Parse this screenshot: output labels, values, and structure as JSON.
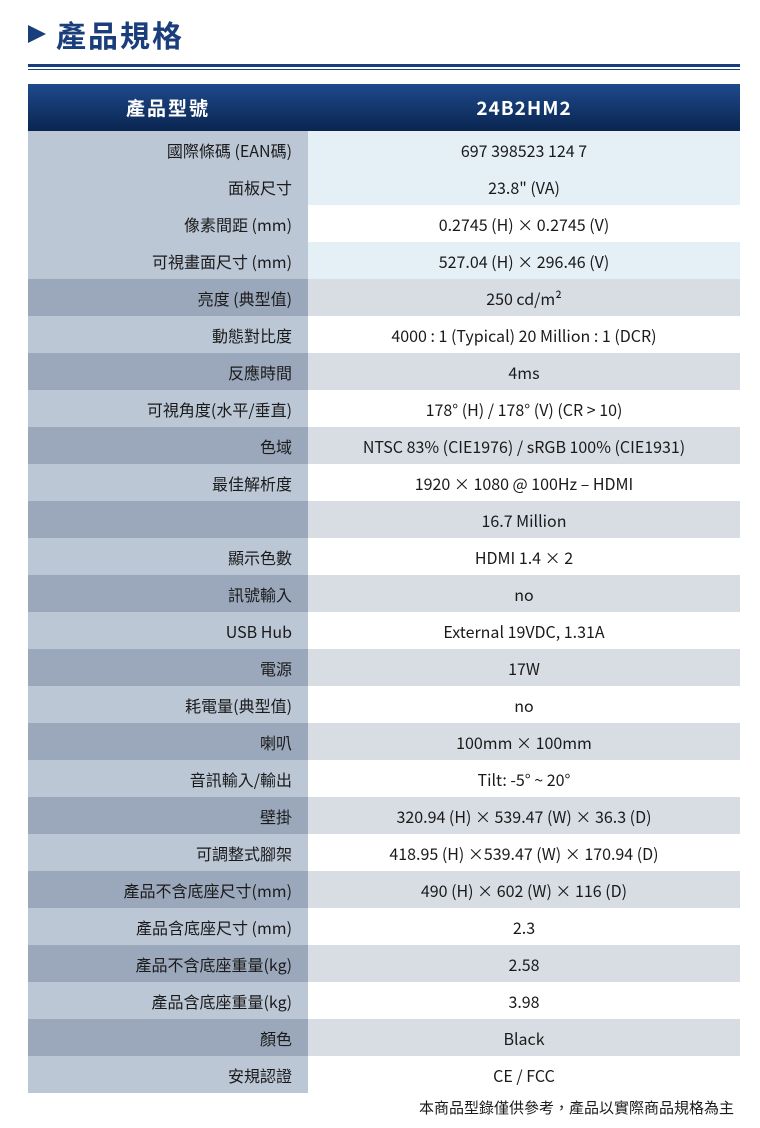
{
  "title": "產品規格",
  "table": {
    "header_label": "產品型號",
    "header_value": "24B2HM2",
    "rows": [
      {
        "label": "國際條碼 (EAN碼)",
        "value": "697 398523 124 7",
        "style": "light-blue"
      },
      {
        "label": "面板尺寸",
        "value": "23.8\" (VA)",
        "style": "light-blue"
      },
      {
        "label": "像素間距 (mm)",
        "value": "0.2745 (H) × 0.2745 (V)",
        "style": "white"
      },
      {
        "label": "可視畫面尺寸 (mm)",
        "value": "527.04 (H) × 296.46 (V)",
        "style": "light-blue"
      },
      {
        "label": "亮度 (典型值)",
        "value": "250 cd/m²",
        "style": "gray"
      },
      {
        "label": "動態對比度",
        "value": "4000 : 1 (Typical)   20 Million : 1 (DCR)",
        "style": "white"
      },
      {
        "label": "反應時間",
        "value": "4ms",
        "style": "gray"
      },
      {
        "label": "可視角度(水平/垂直)",
        "value": "178° (H) / 178° (V) (CR > 10)",
        "style": "white"
      },
      {
        "label": "色域",
        "value": "NTSC 83% (CIE1976) / sRGB 100% (CIE1931)",
        "style": "gray"
      },
      {
        "label": "最佳解析度",
        "value": "1920 × 1080 @ 100Hz – HDMI",
        "style": "white"
      },
      {
        "label": "",
        "value": "16.7 Million",
        "style": "gray"
      },
      {
        "label": "顯示色數",
        "value": "HDMI 1.4 × 2",
        "style": "white"
      },
      {
        "label": "訊號輸入",
        "value": "no",
        "style": "gray"
      },
      {
        "label": "USB Hub",
        "value": "External 19VDC, 1.31A",
        "style": "white"
      },
      {
        "label": "電源",
        "value": "17W",
        "style": "gray"
      },
      {
        "label": "耗電量(典型值)",
        "value": "no",
        "style": "white"
      },
      {
        "label": "喇叭",
        "value": "100mm × 100mm",
        "style": "gray"
      },
      {
        "label": "音訊輸入/輸出",
        "value": "Tilt: -5° ~ 20°",
        "style": "white"
      },
      {
        "label": "壁掛",
        "value": "320.94 (H) × 539.47 (W) × 36.3 (D)",
        "style": "gray"
      },
      {
        "label": "可調整式腳架",
        "value": "418.95 (H) ×539.47 (W) × 170.94 (D)",
        "style": "white"
      },
      {
        "label": "產品不含底座尺寸(mm)",
        "value": "490 (H) × 602 (W) × 116 (D)",
        "style": "gray"
      },
      {
        "label": "產品含底座尺寸 (mm)",
        "value": "2.3",
        "style": "white"
      },
      {
        "label": "產品不含底座重量(kg)",
        "value": "2.58",
        "style": "gray"
      },
      {
        "label": "產品含底座重量(kg)",
        "value": "3.98",
        "style": "white"
      },
      {
        "label": "顏色",
        "value": "Black",
        "style": "gray"
      },
      {
        "label": "安規認證",
        "value": "CE / FCC",
        "style": "white"
      }
    ]
  },
  "footnote": "本商品型錄僅供參考，產品以實際商品規格為主",
  "colors": {
    "primary": "#1a3d7c",
    "header_gradient_start": "#1e4a8c",
    "header_gradient_end": "#0a2550",
    "label_bg_normal": "#bcc7d6",
    "label_bg_gray": "#9ba8bc",
    "value_bg_light_blue": "#e4f0f6",
    "value_bg_white": "#ffffff",
    "value_bg_gray": "#d8dde4"
  }
}
